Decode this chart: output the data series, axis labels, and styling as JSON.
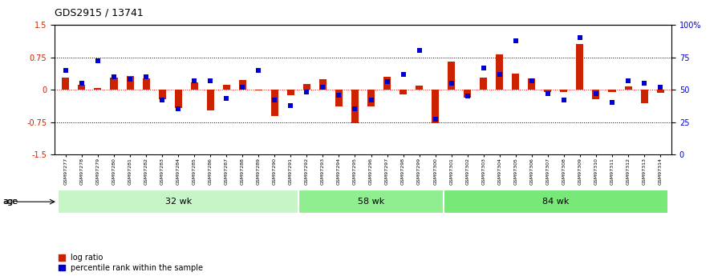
{
  "title": "GDS2915 / 13741",
  "samples": [
    "GSM97277",
    "GSM97278",
    "GSM97279",
    "GSM97280",
    "GSM97281",
    "GSM97282",
    "GSM97283",
    "GSM97284",
    "GSM97285",
    "GSM97286",
    "GSM97287",
    "GSM97288",
    "GSM97289",
    "GSM97290",
    "GSM97291",
    "GSM97292",
    "GSM97293",
    "GSM97294",
    "GSM97295",
    "GSM97296",
    "GSM97297",
    "GSM97298",
    "GSM97299",
    "GSM97300",
    "GSM97301",
    "GSM97302",
    "GSM97303",
    "GSM97304",
    "GSM97305",
    "GSM97306",
    "GSM97307",
    "GSM97308",
    "GSM97309",
    "GSM97310",
    "GSM97311",
    "GSM97312",
    "GSM97313",
    "GSM97314"
  ],
  "log_ratio": [
    0.28,
    0.12,
    0.04,
    0.28,
    0.32,
    0.27,
    -0.22,
    -0.42,
    0.16,
    -0.48,
    0.12,
    0.22,
    -0.02,
    -0.6,
    -0.12,
    0.13,
    0.24,
    -0.38,
    -0.78,
    -0.38,
    0.3,
    -0.1,
    0.1,
    -0.78,
    0.65,
    -0.18,
    0.28,
    0.82,
    0.38,
    0.26,
    -0.06,
    -0.05,
    1.05,
    -0.22,
    -0.05,
    0.08,
    -0.32,
    -0.08
  ],
  "percentile": [
    65,
    55,
    72,
    60,
    58,
    60,
    42,
    35,
    57,
    57,
    43,
    52,
    65,
    42,
    38,
    48,
    52,
    46,
    35,
    42,
    56,
    62,
    80,
    27,
    55,
    45,
    67,
    62,
    88,
    57,
    47,
    42,
    90,
    47,
    40,
    57,
    55,
    52
  ],
  "groups": [
    {
      "label": "32 wk",
      "start": 0,
      "end": 15
    },
    {
      "label": "58 wk",
      "start": 15,
      "end": 24
    },
    {
      "label": "84 wk",
      "start": 24,
      "end": 38
    }
  ],
  "group_colors": [
    "#c8f5c8",
    "#90ee90",
    "#78e878"
  ],
  "bar_color": "#cc2200",
  "dot_color": "#0000cc",
  "ylim_left": [
    -1.5,
    1.5
  ],
  "ylim_right": [
    0,
    100
  ],
  "yticks_left": [
    -1.5,
    -0.75,
    0.0,
    0.75,
    1.5
  ],
  "yticks_left_labels": [
    "-1.5",
    "-0.75",
    "0",
    "0.75",
    "1.5"
  ],
  "yticks_right": [
    0,
    25,
    50,
    75,
    100
  ],
  "yticks_right_labels": [
    "0",
    "25",
    "50",
    "75",
    "100%"
  ],
  "hlines_black": [
    0.75,
    -0.75
  ],
  "hline_red": 0.0,
  "legend_labels": [
    "log ratio",
    "percentile rank within the sample"
  ],
  "legend_colors": [
    "#cc2200",
    "#0000cc"
  ],
  "bar_width": 0.45,
  "dot_size": 15
}
